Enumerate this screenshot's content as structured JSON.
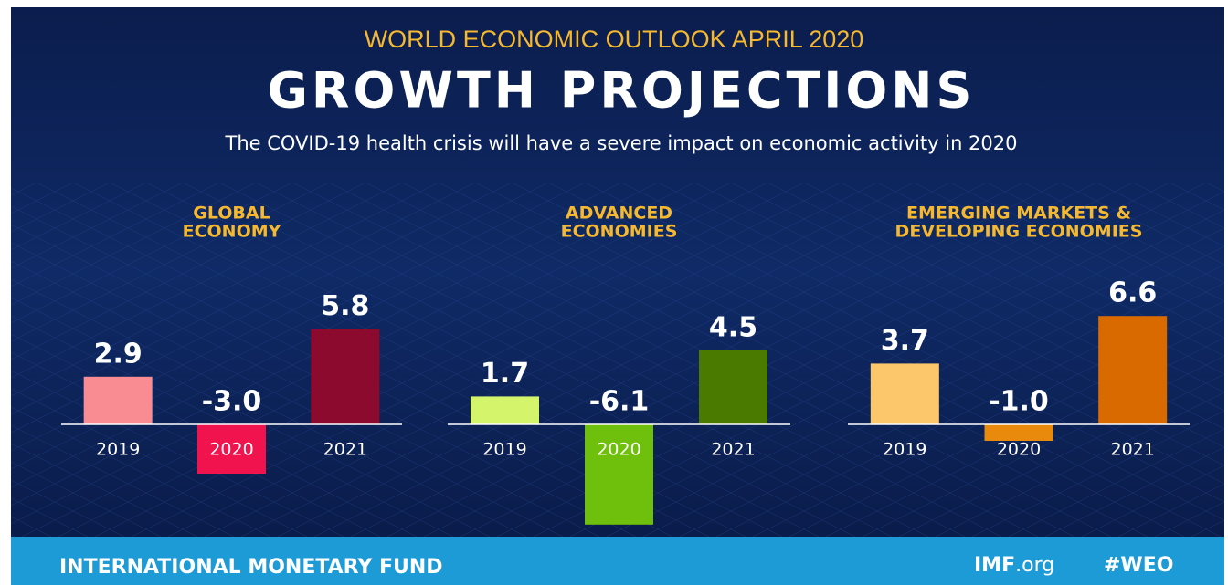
{
  "header": {
    "kicker": "WORLD ECONOMIC OUTLOOK  APRIL 2020",
    "title": "GROWTH PROJECTIONS",
    "subtitle": "The COVID-19 health crisis will have a severe impact on economic activity in 2020"
  },
  "chart_data": [
    {
      "type": "bar",
      "title": [
        "GLOBAL",
        "ECONOMY"
      ],
      "categories": [
        "2019",
        "2020",
        "2021"
      ],
      "values": [
        2.9,
        -3.0,
        5.8
      ],
      "value_labels": [
        "2.9",
        "-3.0",
        "5.8"
      ],
      "colors": [
        "#f98b93",
        "#f0134d",
        "#8b0a2d"
      ]
    },
    {
      "type": "bar",
      "title": [
        "ADVANCED",
        "ECONOMIES"
      ],
      "categories": [
        "2019",
        "2020",
        "2021"
      ],
      "values": [
        1.7,
        -6.1,
        4.5
      ],
      "value_labels": [
        "1.7",
        "-6.1",
        "4.5"
      ],
      "colors": [
        "#d4f56b",
        "#6fbf0d",
        "#4a7a00"
      ]
    },
    {
      "type": "bar",
      "title": [
        "EMERGING MARKETS &",
        "DEVELOPING ECONOMIES"
      ],
      "categories": [
        "2019",
        "2020",
        "2021"
      ],
      "values": [
        3.7,
        -1.0,
        6.6
      ],
      "value_labels": [
        "3.7",
        "-1.0",
        "6.6"
      ],
      "colors": [
        "#fcc76a",
        "#e98a0c",
        "#d96a00"
      ]
    }
  ],
  "footer": {
    "organization": "INTERNATIONAL MONETARY FUND",
    "site_name": "IMF",
    "site_domain": ".org",
    "hashtag": "#WEO"
  }
}
